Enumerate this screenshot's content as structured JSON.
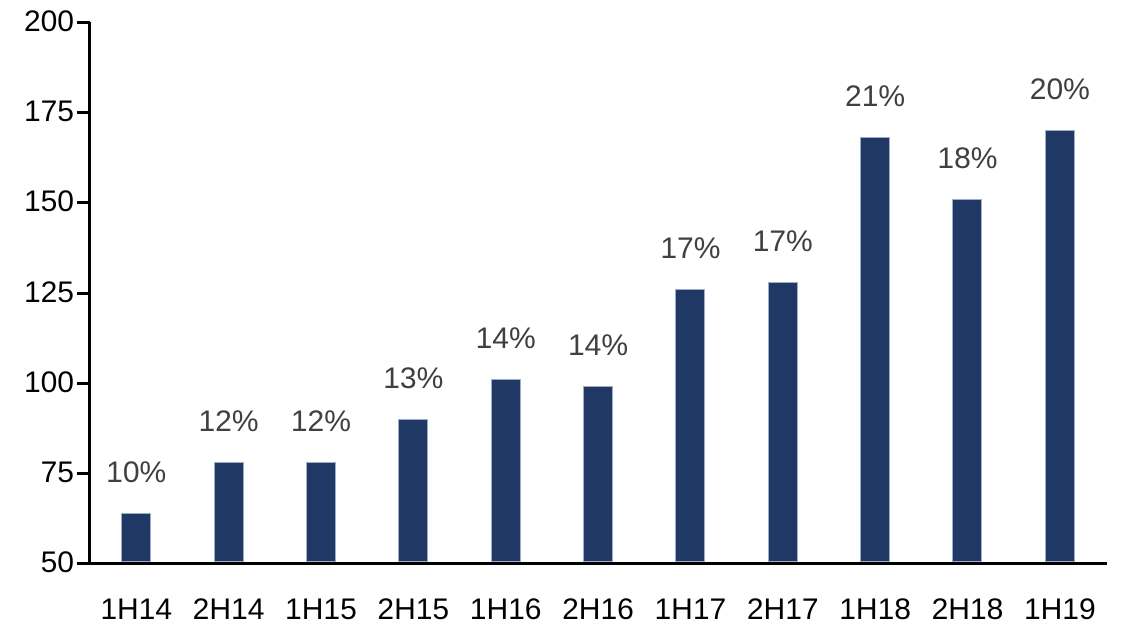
{
  "chart_data": {
    "type": "bar",
    "title": "",
    "xlabel": "",
    "ylabel": "",
    "categories": [
      "1H14",
      "2H14",
      "1H15",
      "2H15",
      "1H16",
      "2H16",
      "1H17",
      "2H17",
      "1H18",
      "2H18",
      "1H19"
    ],
    "values": [
      64,
      78,
      78,
      90,
      101,
      99,
      126,
      128,
      168,
      151,
      170
    ],
    "bar_labels": [
      "10%",
      "12%",
      "12%",
      "13%",
      "14%",
      "14%",
      "17%",
      "17%",
      "21%",
      "18%",
      "20%"
    ],
    "ylim": [
      50,
      200
    ],
    "y_ticks": [
      50,
      75,
      100,
      125,
      150,
      175,
      200
    ],
    "grid": false,
    "legend": false,
    "colors": {
      "bar_fill": "#1F3864",
      "bar_border": "#9FAEC6",
      "data_label": "#404040",
      "axis_text": "#000000",
      "axis_line": "#000000",
      "background": "#FFFFFF"
    }
  }
}
